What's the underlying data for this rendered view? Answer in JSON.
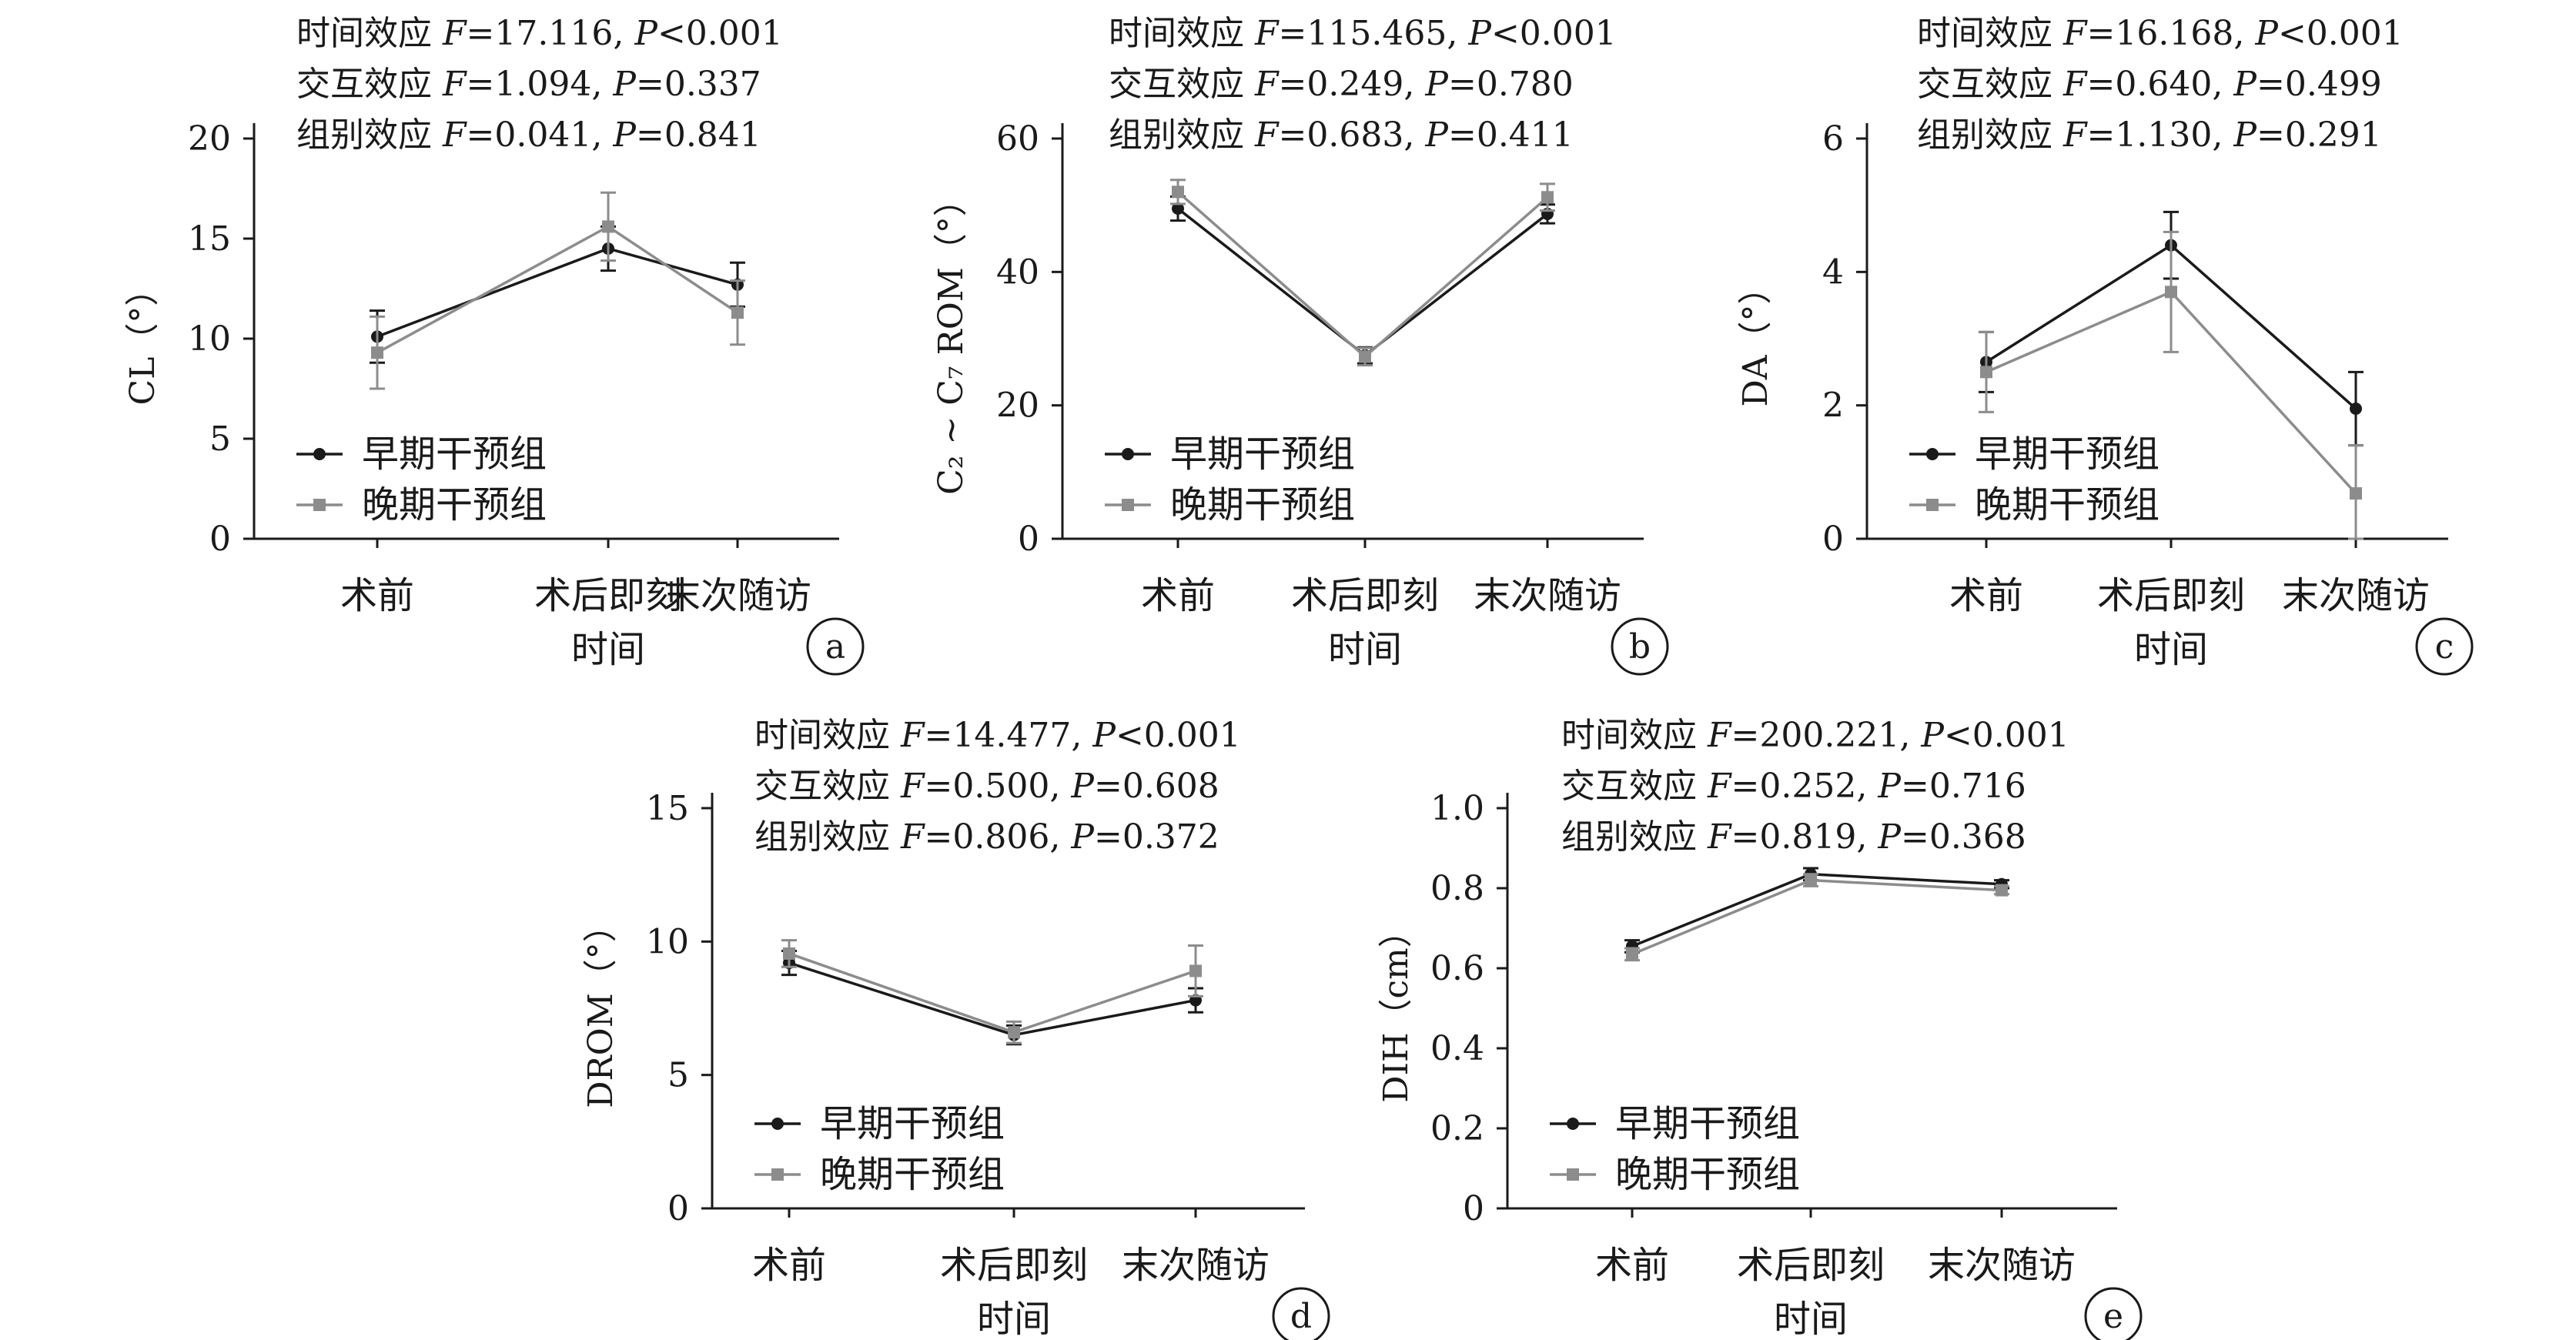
{
  "figure": {
    "time_axis_title": "时间",
    "categories": [
      "术前",
      "术后即刻",
      "末次随访"
    ],
    "legend": [
      "早期干预组",
      "晚期干预组"
    ],
    "colors": {
      "early": "#1a1a1a",
      "late": "#8c8c8c"
    }
  },
  "chart_data": [
    {
      "type": "line",
      "panel_label": "a",
      "ylabel": "CL（°）",
      "ylim": [
        0,
        20
      ],
      "yticks": [
        0,
        5,
        10,
        15,
        20
      ],
      "stats": [
        [
          "时间效应 ",
          "F",
          "=17.116, ",
          "P",
          "<0.001"
        ],
        [
          "交互效应 ",
          "F",
          "=1.094, ",
          "P",
          "=0.337"
        ],
        [
          "组别效应 ",
          "F",
          "=0.041, ",
          "P",
          "=0.841"
        ]
      ],
      "categories": [
        "术前",
        "术后即刻",
        "末次随访"
      ],
      "series": [
        {
          "name": "早期干预组",
          "values": [
            10.1,
            14.5,
            12.7
          ],
          "errors": [
            1.3,
            1.1,
            1.1
          ]
        },
        {
          "name": "晚期干预组",
          "values": [
            9.3,
            15.6,
            11.3
          ],
          "errors": [
            1.8,
            1.7,
            1.6
          ]
        }
      ]
    },
    {
      "type": "line",
      "panel_label": "b",
      "ylabel": "C₂ ~ C₇ ROM（°）",
      "ylim": [
        0,
        60
      ],
      "yticks": [
        0,
        20,
        40,
        60
      ],
      "stats": [
        [
          "时间效应 ",
          "F",
          "=115.465, ",
          "P",
          "<0.001"
        ],
        [
          "交互效应 ",
          "F",
          "=0.249, ",
          "P",
          "=0.780"
        ],
        [
          "组别效应 ",
          "F",
          "=0.683, ",
          "P",
          "=0.411"
        ]
      ],
      "categories": [
        "术前",
        "术后即刻",
        "末次随访"
      ],
      "series": [
        {
          "name": "早期干预组",
          "values": [
            49.5,
            27.5,
            48.7
          ],
          "errors": [
            1.8,
            1.2,
            1.4
          ]
        },
        {
          "name": "晚期干预组",
          "values": [
            52.0,
            27.3,
            51.2
          ],
          "errors": [
            1.8,
            1.3,
            2.0
          ]
        }
      ]
    },
    {
      "type": "line",
      "panel_label": "c",
      "ylabel": "DA（°）",
      "ylim": [
        0,
        6
      ],
      "yticks": [
        0,
        2,
        4,
        6
      ],
      "stats": [
        [
          "时间效应 ",
          "F",
          "=16.168, ",
          "P",
          "<0.001"
        ],
        [
          "交互效应 ",
          "F",
          "=0.640, ",
          "P",
          "=0.499"
        ],
        [
          "组别效应 ",
          "F",
          "=1.130, ",
          "P",
          "=0.291"
        ]
      ],
      "categories": [
        "术前",
        "术后即刻",
        "末次随访"
      ],
      "series": [
        {
          "name": "早期干预组",
          "values": [
            2.65,
            4.4,
            1.95
          ],
          "errors": [
            0.45,
            0.5,
            0.55
          ]
        },
        {
          "name": "晚期干预组",
          "values": [
            2.5,
            3.7,
            0.68
          ],
          "errors": [
            0.6,
            0.9,
            0.72
          ]
        }
      ]
    },
    {
      "type": "line",
      "panel_label": "d",
      "ylabel": "DROM（°）",
      "ylim": [
        0,
        15
      ],
      "yticks": [
        0,
        5,
        10,
        15
      ],
      "stats": [
        [
          "时间效应 ",
          "F",
          "=14.477, ",
          "P",
          "<0.001"
        ],
        [
          "交互效应 ",
          "F",
          "=0.500, ",
          "P",
          "=0.608"
        ],
        [
          "组别效应 ",
          "F",
          "=0.806, ",
          "P",
          "=0.372"
        ]
      ],
      "categories": [
        "术前",
        "术后即刻",
        "末次随访"
      ],
      "series": [
        {
          "name": "早期干预组",
          "values": [
            9.2,
            6.5,
            7.8
          ],
          "errors": [
            0.45,
            0.35,
            0.45
          ]
        },
        {
          "name": "晚期干预组",
          "values": [
            9.55,
            6.6,
            8.9
          ],
          "errors": [
            0.5,
            0.4,
            0.95
          ]
        }
      ]
    },
    {
      "type": "line",
      "panel_label": "e",
      "ylabel": "DIH（cm）",
      "ylim": [
        0,
        1.0
      ],
      "yticks": [
        "0",
        "0.2",
        "0.4",
        "0.6",
        "0.8",
        "1.0"
      ],
      "stats": [
        [
          "时间效应 ",
          "F",
          "=200.221, ",
          "P",
          "<0.001"
        ],
        [
          "交互效应 ",
          "F",
          "=0.252, ",
          "P",
          "=0.716"
        ],
        [
          "组别效应 ",
          "F",
          "=0.819, ",
          "P",
          "=0.368"
        ]
      ],
      "categories": [
        "术前",
        "术后即刻",
        "末次随访"
      ],
      "series": [
        {
          "name": "早期干预组",
          "values": [
            0.655,
            0.835,
            0.81
          ],
          "errors": [
            0.015,
            0.015,
            0.01
          ]
        },
        {
          "name": "晚期干预组",
          "values": [
            0.635,
            0.82,
            0.795
          ],
          "errors": [
            0.015,
            0.015,
            0.01
          ]
        }
      ]
    }
  ]
}
